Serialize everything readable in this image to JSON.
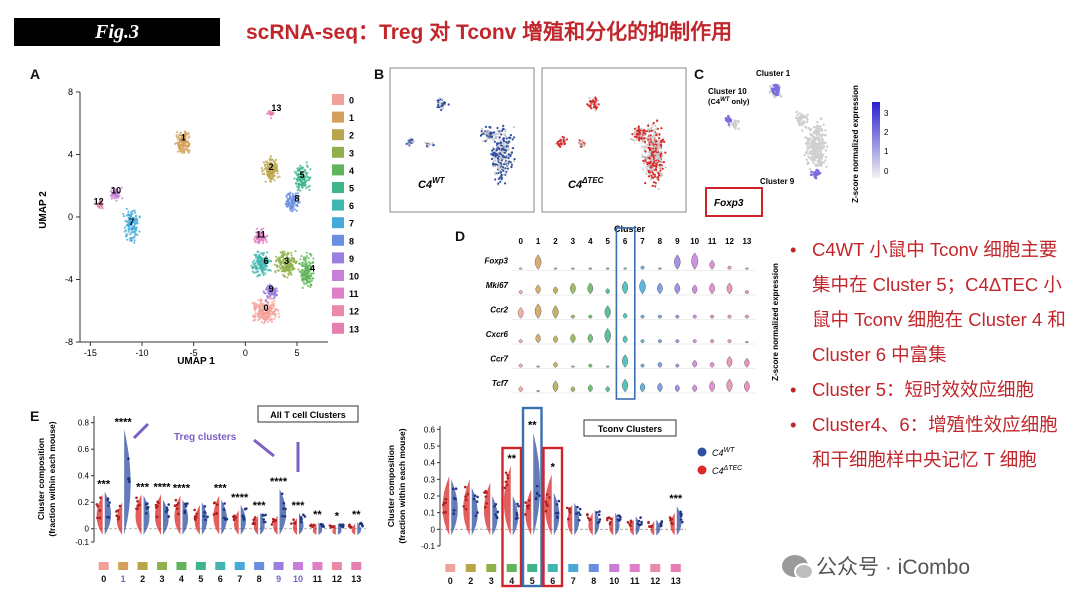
{
  "header": {
    "fig_tag": "Fig.3",
    "title": "scRNA-seq：Treg 对 Tconv 增殖和分化的抑制作用"
  },
  "panels": {
    "a": "A",
    "b": "B",
    "c": "C",
    "d": "D",
    "e": "E"
  },
  "umap": {
    "xlabel": "UMAP 1",
    "ylabel": "UMAP 2",
    "x_ticks": [
      "-15",
      "-10",
      "-5",
      "0",
      "5"
    ],
    "y_ticks": [
      "8",
      "4",
      "0",
      "-4",
      "-8"
    ],
    "legend": [
      "0",
      "1",
      "2",
      "3",
      "4",
      "5",
      "6",
      "7",
      "8",
      "9",
      "10",
      "11",
      "12",
      "13"
    ],
    "colors": [
      "#f2a19a",
      "#d2a05a",
      "#b9a64a",
      "#8fb04a",
      "#5fb55a",
      "#3fb58a",
      "#3fb6b0",
      "#45a9d9",
      "#6b8fe0",
      "#9a7fe0",
      "#c77fd8",
      "#e07fc8",
      "#e88aa8",
      "#e57fb0"
    ],
    "cluster_labels": [
      {
        "id": "0",
        "x": 2,
        "y": -6
      },
      {
        "id": "1",
        "x": -6,
        "y": 4.9
      },
      {
        "id": "2",
        "x": 2.5,
        "y": 3
      },
      {
        "id": "3",
        "x": 4,
        "y": -3
      },
      {
        "id": "4",
        "x": 6.5,
        "y": -3.5
      },
      {
        "id": "5",
        "x": 5.5,
        "y": 2.5
      },
      {
        "id": "6",
        "x": 2,
        "y": -3
      },
      {
        "id": "7",
        "x": -11,
        "y": -0.5
      },
      {
        "id": "8",
        "x": 5,
        "y": 1
      },
      {
        "id": "9",
        "x": 2.5,
        "y": -4.8
      },
      {
        "id": "10",
        "x": -12.5,
        "y": 1.5
      },
      {
        "id": "11",
        "x": 1.5,
        "y": -1.3
      },
      {
        "id": "12",
        "x": -14.2,
        "y": 0.8
      },
      {
        "id": "13",
        "x": 3,
        "y": 6.8
      }
    ]
  },
  "panel_b": {
    "wt_label": "C4",
    "wt_sup": "WT",
    "tec_label": "C4",
    "tec_sup": "ΔTEC"
  },
  "panel_c": {
    "cluster1": "Cluster 1",
    "cluster10_line1": "Cluster 10",
    "cluster10_line2_pre": "(C4",
    "cluster10_line2_sup": "WT",
    "cluster10_line2_post": " only)",
    "cluster9": "Cluster 9",
    "gene": "Foxp3",
    "colorbar_label": "Z-score normalized expression",
    "colorbar_ticks": [
      "3",
      "2",
      "1",
      "0"
    ]
  },
  "panel_d": {
    "title": "Cluster",
    "clusters": [
      "0",
      "1",
      "2",
      "3",
      "4",
      "5",
      "6",
      "7",
      "8",
      "9",
      "10",
      "11",
      "12",
      "13"
    ],
    "genes": [
      "Foxp3",
      "Mki67",
      "Ccr2",
      "Cxcr6",
      "Ccr7",
      "Tcf7"
    ],
    "side_label": "Z-score normalized expression",
    "highlight_cluster": "6",
    "violin_heights": [
      [
        0.1,
        0.8,
        0.1,
        0.1,
        0.1,
        0.1,
        0.1,
        0.2,
        0.1,
        0.8,
        0.9,
        0.5,
        0.2,
        0.1
      ],
      [
        0.2,
        0.5,
        0.4,
        0.6,
        0.6,
        0.3,
        0.7,
        0.8,
        0.6,
        0.6,
        0.5,
        0.6,
        0.6,
        0.2
      ],
      [
        0.6,
        0.8,
        0.7,
        0.2,
        0.2,
        0.7,
        0.3,
        0.2,
        0.2,
        0.2,
        0.2,
        0.2,
        0.2,
        0.2
      ],
      [
        0.2,
        0.5,
        0.4,
        0.5,
        0.5,
        0.8,
        0.4,
        0.2,
        0.2,
        0.2,
        0.2,
        0.2,
        0.2,
        0.1
      ],
      [
        0.2,
        0.1,
        0.3,
        0.1,
        0.2,
        0.1,
        0.7,
        0.2,
        0.3,
        0.2,
        0.4,
        0.3,
        0.6,
        0.5
      ],
      [
        0.3,
        0.1,
        0.6,
        0.3,
        0.4,
        0.3,
        0.7,
        0.5,
        0.5,
        0.4,
        0.4,
        0.6,
        0.7,
        0.6
      ]
    ]
  },
  "panel_e_left": {
    "box_title": "All T cell Clusters",
    "annotation": "Treg clusters",
    "ylabel_line1": "Cluster composition",
    "ylabel_line2": "(fraction within each mouse)",
    "y_ticks": [
      "0.8",
      "0.6",
      "0.4",
      "0.2",
      "0",
      "-0.1"
    ],
    "clusters": [
      "0",
      "1",
      "2",
      "3",
      "4",
      "5",
      "6",
      "7",
      "8",
      "9",
      "10",
      "11",
      "12",
      "13"
    ],
    "stars": [
      "***",
      "****",
      "***",
      "****",
      "****",
      "",
      "***",
      "****",
      "***",
      "****",
      "***",
      "**",
      "*",
      "**"
    ],
    "wt_heights": [
      0.28,
      0.75,
      0.25,
      0.22,
      0.22,
      0.2,
      0.22,
      0.18,
      0.12,
      0.3,
      0.12,
      0.05,
      0.04,
      0.05
    ],
    "tec_heights": [
      0.26,
      0.2,
      0.26,
      0.26,
      0.25,
      0.18,
      0.25,
      0.14,
      0.1,
      0.1,
      0.08,
      0.04,
      0.03,
      0.04
    ]
  },
  "panel_e_right": {
    "box_title": "Tconv Clusters",
    "ylabel_line1": "Cluster composition",
    "ylabel_line2": "(fraction within each mouse)",
    "y_ticks": [
      "0.6",
      "0.5",
      "0.4",
      "0.3",
      "0.2",
      "0.1",
      "0",
      "-0.1"
    ],
    "clusters": [
      "0",
      "2",
      "3",
      "4",
      "5",
      "6",
      "7",
      "8",
      "10",
      "11",
      "12",
      "13"
    ],
    "stars": [
      "",
      "",
      "",
      "**",
      "**",
      "*",
      "",
      "",
      "",
      "",
      "",
      "***"
    ],
    "wt_heights": [
      0.3,
      0.25,
      0.2,
      0.2,
      0.58,
      0.22,
      0.16,
      0.12,
      0.1,
      0.08,
      0.06,
      0.14
    ],
    "tec_heights": [
      0.32,
      0.3,
      0.28,
      0.38,
      0.24,
      0.33,
      0.15,
      0.1,
      0.08,
      0.06,
      0.05,
      0.1
    ],
    "legend_wt": "C4",
    "legend_wt_sup": "WT",
    "legend_tec": "C4",
    "legend_tec_sup": "ΔTEC"
  },
  "bullets": [
    "C4WT 小鼠中 Tconv 细胞主要集中在 Cluster 5；C4ΔTEC 小鼠中 Tconv 细胞在 Cluster 4 和 Cluster 6 中富集",
    "Cluster 5：短时效效应细胞",
    "Cluster4、6：增殖性效应细胞和干细胞样中央记忆 T 细胞"
  ],
  "watermark": "公众号 · iCombo",
  "colors": {
    "title_red": "#c0262b",
    "wt_blue": "#2f4fa0",
    "tec_red": "#d92a2a",
    "highlight_red": "#d0242a",
    "highlight_blue": "#3a6fb0",
    "annotation_purple": "#7b5fc7"
  }
}
